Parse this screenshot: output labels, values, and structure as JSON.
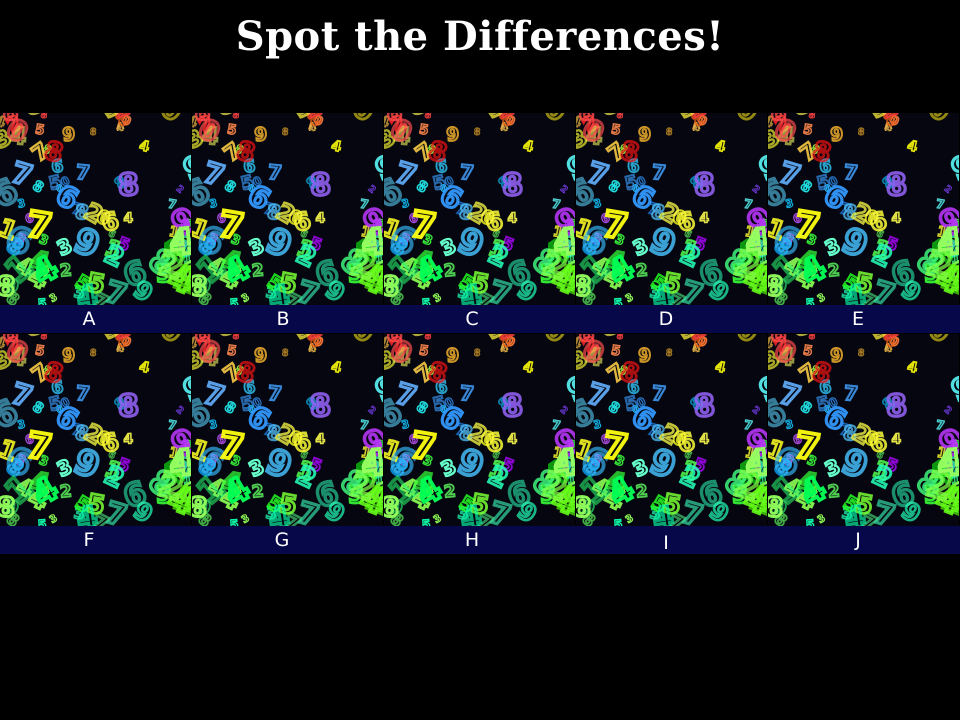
{
  "title": "Spot the Differences!",
  "colors": {
    "background": "#000000",
    "label_bar": "#06084a",
    "label_text": "#ffffff",
    "title_text": "#ffffff"
  },
  "panel_image": "rainbow-neon-numbers",
  "rows": [
    {
      "panels": [
        {
          "label": "A"
        },
        {
          "label": "B"
        },
        {
          "label": "C"
        },
        {
          "label": "D"
        },
        {
          "label": "E"
        }
      ]
    },
    {
      "panels": [
        {
          "label": "F"
        },
        {
          "label": "G"
        },
        {
          "label": "H"
        },
        {
          "label": "I"
        },
        {
          "label": "J"
        }
      ]
    }
  ]
}
